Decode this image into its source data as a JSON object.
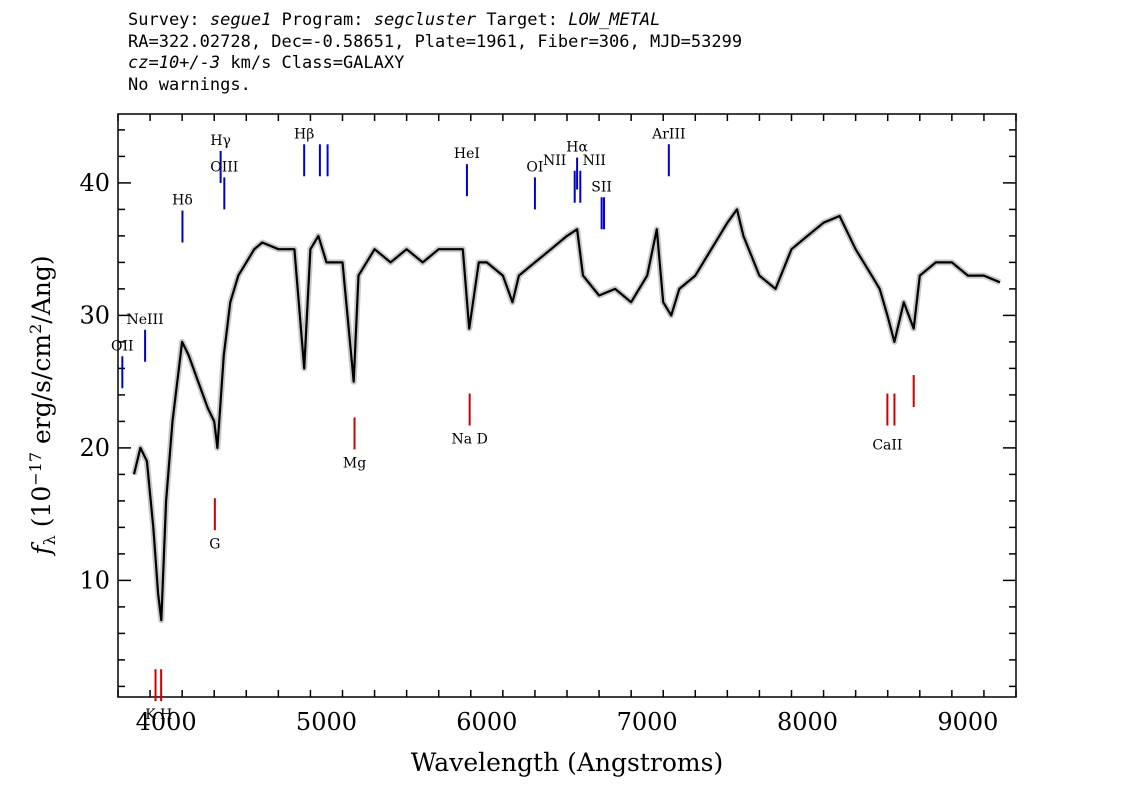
{
  "header": {
    "survey_label": "Survey:",
    "survey": "segue1",
    "program_label": "Program:",
    "program": "segcluster",
    "target_label": "Target:",
    "target": "LOW_METAL",
    "line2": "RA=322.02728, Dec=-0.58651, Plate=1961, Fiber=306, MJD=53299",
    "cz": "cz=10+/-3",
    "cz_rest": " km/s Class=GALAXY",
    "line4": "No warnings."
  },
  "chart_data": {
    "type": "line",
    "xlabel": "Wavelength (Angstroms)",
    "ylabel": "f_λ (10^-17 erg/s/cm^2/Ang)",
    "xlim": [
      3700,
      9300
    ],
    "ylim": [
      1.2,
      45.2
    ],
    "x_ticks": [
      4000,
      5000,
      6000,
      7000,
      8000,
      9000
    ],
    "y_ticks": [
      10,
      20,
      30,
      40
    ],
    "series": [
      {
        "color": "#000000",
        "x": [
          3800,
          3840,
          3880,
          3920,
          3950,
          3970,
          4000,
          4040,
          4080,
          4100,
          4140,
          4200,
          4260,
          4300,
          4320,
          4360,
          4400,
          4450,
          4500,
          4550,
          4600,
          4700,
          4800,
          4861,
          4900,
          4950,
          5000,
          5100,
          5170,
          5200,
          5300,
          5400,
          5500,
          5600,
          5700,
          5800,
          5850,
          5890,
          5950,
          6000,
          6100,
          6160,
          6200,
          6300,
          6400,
          6500,
          6563,
          6600,
          6700,
          6800,
          6900,
          7000,
          7060,
          7100,
          7150,
          7200,
          7300,
          7400,
          7500,
          7560,
          7600,
          7700,
          7800,
          7900,
          8000,
          8100,
          8200,
          8300,
          8400,
          8450,
          8498,
          8542,
          8600,
          8662,
          8700,
          8800,
          8900,
          9000,
          9100,
          9200
        ],
        "y": [
          18,
          20,
          19,
          14,
          9,
          7,
          16,
          22,
          26,
          28,
          27,
          25,
          23,
          22,
          20,
          27,
          31,
          33,
          34,
          35,
          35.5,
          35,
          35,
          26,
          35,
          36,
          34,
          34,
          25,
          33,
          35,
          34,
          35,
          34,
          35,
          35,
          35,
          29,
          34,
          34,
          33,
          31,
          33,
          34,
          35,
          36,
          36.5,
          33,
          31.5,
          32,
          31,
          33,
          36.5,
          31,
          30,
          32,
          33,
          35,
          37,
          38,
          36,
          33,
          32,
          35,
          36,
          37,
          37.5,
          35,
          33,
          32,
          30,
          28,
          31,
          29,
          33,
          34,
          34,
          33,
          33,
          32.5
        ]
      }
    ],
    "lines_blue": [
      {
        "label": "OII",
        "x": 3727,
        "y": 24.5
      },
      {
        "label": "NeIII",
        "x": 3869,
        "y": 26.5
      },
      {
        "label": "Hδ",
        "x": 4102,
        "y": 35.5
      },
      {
        "label": "Hγ",
        "x": 4340,
        "y": 40
      },
      {
        "label": "OIII",
        "x": 4363,
        "y": 38
      },
      {
        "label": "Hβ",
        "x": 4861,
        "y": 40.5
      },
      {
        "label": "OIII",
        "x": 4959,
        "y": 40.5
      },
      {
        "label": "OIII",
        "x": 5007,
        "y": 40.5
      },
      {
        "label": "HeI",
        "x": 5876,
        "y": 39
      },
      {
        "label": "OI",
        "x": 6300,
        "y": 38
      },
      {
        "label": "NII",
        "x": 6548,
        "y": 38.5
      },
      {
        "label": "Hα",
        "x": 6563,
        "y": 39.5
      },
      {
        "label": "NII",
        "x": 6583,
        "y": 38.5
      },
      {
        "label": "SII",
        "x": 6716,
        "y": 36.5
      },
      {
        "label": "SII",
        "x": 6731,
        "y": 36.5
      },
      {
        "label": "ArIII",
        "x": 7135,
        "y": 40.5
      }
    ],
    "lines_red": [
      {
        "label": "K",
        "x": 3934,
        "y": 3.3
      },
      {
        "label": "H",
        "x": 3969,
        "y": 3.3
      },
      {
        "label": "G",
        "x": 4304,
        "y": 16.2
      },
      {
        "label": "Mg",
        "x": 5175,
        "y": 22.3
      },
      {
        "label": "Na D",
        "x": 5893,
        "y": 24.1
      },
      {
        "label": "CaII",
        "x": 8498,
        "y": 24.1
      },
      {
        "label": "CaII",
        "x": 8542,
        "y": 24.1
      },
      {
        "label": "CaII",
        "x": 8662,
        "y": 25.5
      }
    ]
  }
}
